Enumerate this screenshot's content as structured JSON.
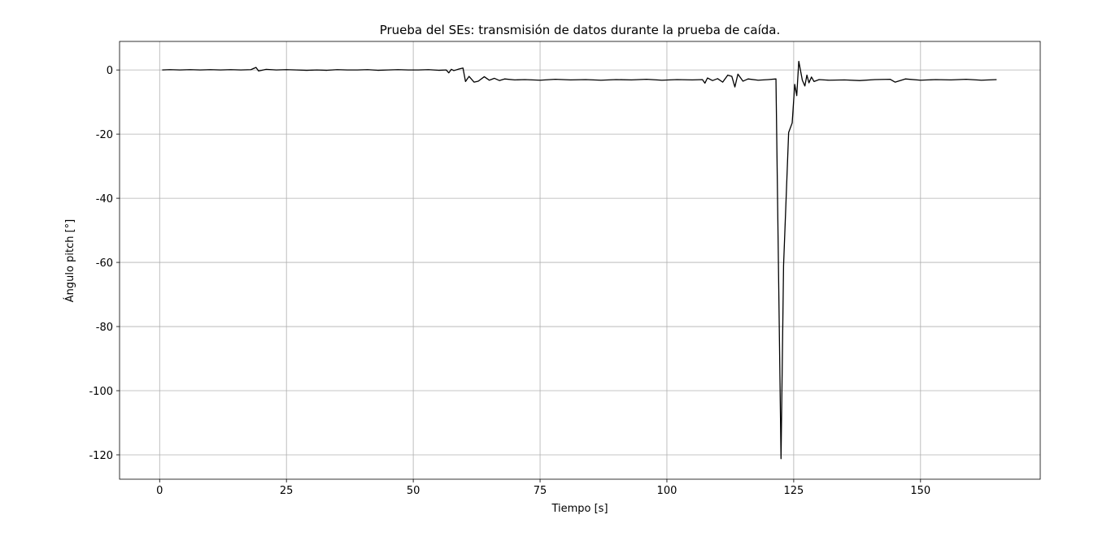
{
  "chart_data": {
    "type": "line",
    "title": "Prueba del SEs: transmisión de datos durante la prueba de caída.",
    "xlabel": "Tiempo [s]",
    "ylabel": "Ángulo pitch [°]",
    "xlim": [
      -7.9,
      173.6
    ],
    "ylim": [
      -127.6,
      8.9
    ],
    "xticks": [
      0,
      25,
      50,
      75,
      100,
      125,
      150
    ],
    "yticks": [
      0,
      -20,
      -40,
      -60,
      -80,
      -100,
      -120
    ],
    "grid": true,
    "x": [
      0.5,
      2,
      4,
      6,
      8,
      10,
      12,
      14,
      16,
      18,
      19,
      19.5,
      21,
      23,
      25,
      27,
      29,
      31,
      33,
      35,
      37,
      39,
      41,
      43,
      45,
      47,
      49,
      51,
      53,
      55,
      56.5,
      57,
      57.5,
      58,
      59,
      59.8,
      60.3,
      61,
      62,
      62.8,
      64,
      65,
      66,
      67,
      68,
      70,
      72,
      75,
      78,
      81,
      84,
      87,
      90,
      93,
      96,
      99,
      102,
      105,
      107,
      107.5,
      108,
      109,
      110,
      111,
      112,
      112.8,
      113.4,
      114,
      115,
      116,
      118,
      120,
      121.5,
      122.5,
      123,
      124,
      124.7,
      125.2,
      125.6,
      126,
      126.7,
      127.2,
      127.6,
      128,
      128.5,
      129,
      130,
      132,
      135,
      138,
      141,
      144,
      145,
      147,
      150,
      153,
      156,
      159,
      162,
      165
    ],
    "series": [
      {
        "color": "#000000",
        "values": [
          0,
          0.1,
          0,
          0.1,
          0,
          0.1,
          0,
          0.1,
          0,
          0.1,
          0.8,
          -0.3,
          0.2,
          0,
          0.1,
          0,
          -0.1,
          0,
          -0.1,
          0.1,
          0,
          0,
          0.1,
          -0.1,
          0,
          0.1,
          0,
          0,
          0.1,
          -0.1,
          0,
          -0.9,
          0.2,
          -0.2,
          0.3,
          0.6,
          -3.6,
          -2,
          -3.8,
          -3.5,
          -2.1,
          -3.2,
          -2.6,
          -3.3,
          -2.8,
          -3.1,
          -3,
          -3.2,
          -2.9,
          -3.1,
          -3,
          -3.2,
          -3,
          -3.1,
          -2.9,
          -3.2,
          -3,
          -3.1,
          -3,
          -4.1,
          -2.5,
          -3.3,
          -2.7,
          -3.8,
          -1.6,
          -2,
          -5.3,
          -1.3,
          -3.5,
          -2.8,
          -3.2,
          -3,
          -2.8,
          -121.2,
          -61,
          -19.5,
          -16.5,
          -4.5,
          -8,
          2.7,
          -3.2,
          -5,
          -1.6,
          -4,
          -2.2,
          -3.6,
          -3,
          -3.2,
          -3.1,
          -3.3,
          -3,
          -2.9,
          -3.8,
          -2.8,
          -3.2,
          -3,
          -3.1,
          -2.9,
          -3.2,
          -3
        ]
      }
    ]
  }
}
